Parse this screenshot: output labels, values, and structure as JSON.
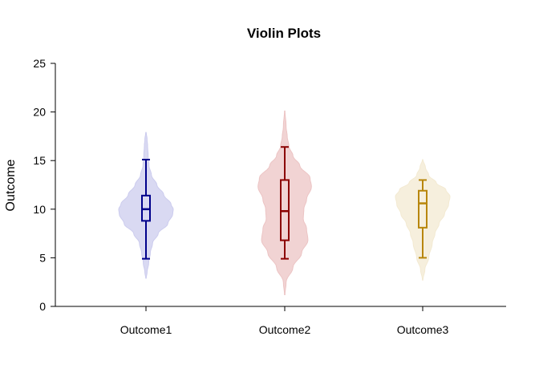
{
  "chart_data": {
    "type": "violin",
    "title": "Violin Plots",
    "xlabel": "",
    "ylabel": "Outcome",
    "categories": [
      "Outcome1",
      "Outcome2",
      "Outcome3"
    ],
    "ylim": [
      0,
      25
    ],
    "yticks": [
      "0",
      "5",
      "10",
      "15",
      "20",
      "25"
    ],
    "grid": false,
    "legend": "none",
    "series": [
      {
        "category": "Outcome1",
        "color": "#00008b",
        "fill": "#ccccee",
        "box": {
          "whisker_low": 4.9,
          "q1": 8.8,
          "median": 10.0,
          "q3": 11.4,
          "whisker_high": 15.1
        },
        "density_range": [
          2.9,
          17.9
        ],
        "density": [
          [
            2.9,
            0.01
          ],
          [
            3.5,
            0.04
          ],
          [
            4.5,
            0.1
          ],
          [
            5.5,
            0.16
          ],
          [
            6.5,
            0.24
          ],
          [
            7.5,
            0.45
          ],
          [
            8.5,
            0.8
          ],
          [
            9.5,
            0.98
          ],
          [
            10.0,
            1.0
          ],
          [
            10.5,
            0.92
          ],
          [
            11.5,
            0.65
          ],
          [
            12.5,
            0.4
          ],
          [
            13.5,
            0.2
          ],
          [
            14.5,
            0.11
          ],
          [
            15.5,
            0.08
          ],
          [
            16.5,
            0.06
          ],
          [
            17.2,
            0.04
          ],
          [
            17.9,
            0.01
          ]
        ]
      },
      {
        "category": "Outcome2",
        "color": "#8b0000",
        "fill": "#ecc4c4",
        "box": {
          "whisker_low": 4.9,
          "q1": 6.8,
          "median": 9.8,
          "q3": 13.0,
          "whisker_high": 16.4
        },
        "density_range": [
          1.2,
          20.1
        ],
        "density": [
          [
            1.2,
            0.01
          ],
          [
            2.5,
            0.05
          ],
          [
            4.0,
            0.3
          ],
          [
            5.5,
            0.62
          ],
          [
            6.8,
            0.85
          ],
          [
            8.0,
            0.8
          ],
          [
            9.0,
            0.68
          ],
          [
            10.0,
            0.7
          ],
          [
            11.0,
            0.8
          ],
          [
            12.3,
            0.98
          ],
          [
            13.2,
            0.93
          ],
          [
            14.5,
            0.55
          ],
          [
            15.5,
            0.3
          ],
          [
            16.5,
            0.15
          ],
          [
            17.5,
            0.09
          ],
          [
            18.5,
            0.05
          ],
          [
            20.1,
            0.01
          ]
        ]
      },
      {
        "category": "Outcome3",
        "color": "#b8860b",
        "fill": "#f3ead2",
        "box": {
          "whisker_low": 5.0,
          "q1": 8.1,
          "median": 10.6,
          "q3": 11.9,
          "whisker_high": 13.0
        },
        "density_range": [
          2.7,
          15.1
        ],
        "density": [
          [
            2.7,
            0.01
          ],
          [
            3.8,
            0.08
          ],
          [
            5.0,
            0.22
          ],
          [
            6.5,
            0.35
          ],
          [
            7.5,
            0.45
          ],
          [
            8.5,
            0.6
          ],
          [
            9.5,
            0.8
          ],
          [
            10.5,
            0.95
          ],
          [
            11.3,
            1.0
          ],
          [
            12.0,
            0.85
          ],
          [
            12.7,
            0.5
          ],
          [
            13.5,
            0.22
          ],
          [
            14.3,
            0.1
          ],
          [
            15.1,
            0.01
          ]
        ]
      }
    ]
  }
}
